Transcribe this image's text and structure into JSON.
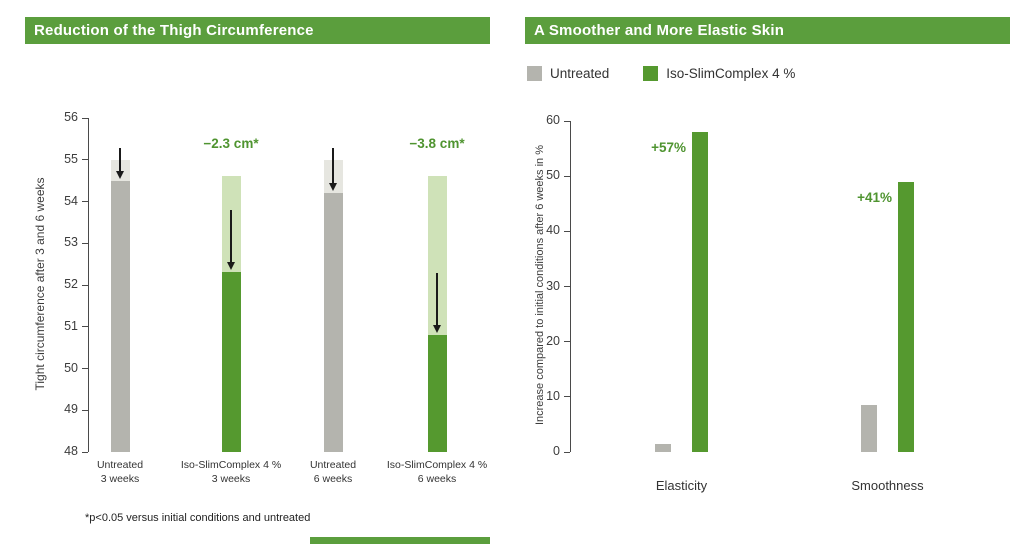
{
  "chart_data": [
    {
      "type": "bar",
      "title": "Reduction of the Thigh Circumference",
      "ylabel": "Tight circumference after 3 and 6 weeks",
      "ylim": [
        48,
        56
      ],
      "ytick_step": 1,
      "footnote": "*p<0.05 versus initial conditions and untreated",
      "bars": [
        {
          "label": "Untreated\n3 weeks",
          "group": "untreated",
          "initial": 55.0,
          "final": 54.5,
          "annotation": null
        },
        {
          "label": "Iso-SlimComplex 4 %\n3 weeks",
          "group": "treated",
          "initial": 54.6,
          "final": 52.3,
          "annotation": "−2.3 cm*"
        },
        {
          "label": "Untreated\n6 weeks",
          "group": "untreated",
          "initial": 55.0,
          "final": 54.2,
          "annotation": null
        },
        {
          "label": "Iso-SlimComplex 4 %\n6 weeks",
          "group": "treated",
          "initial": 54.6,
          "final": 50.8,
          "annotation": "−3.8 cm*"
        }
      ],
      "bar_meaning": "light top segment shows reduction from initial circumference; arrow marks decrease"
    },
    {
      "type": "bar",
      "title": "A Smoother and More Elastic Skin",
      "ylabel": "Increase compared to initial conditions after 6 weeks in %",
      "ylim": [
        0,
        60
      ],
      "ytick_step": 10,
      "legend": [
        "Untreated",
        "Iso-SlimComplex 4 %"
      ],
      "categories": [
        "Elasticity",
        "Smoothness"
      ],
      "series": [
        {
          "name": "Untreated",
          "values": [
            1.5,
            8.5
          ]
        },
        {
          "name": "Iso-SlimComplex 4 %",
          "values": [
            58,
            49
          ]
        }
      ],
      "annotations": [
        "+57%",
        "+41%"
      ]
    }
  ],
  "colors": {
    "header_green": "#5b9e3d",
    "bar_green": "#55992f",
    "bar_light_green": "#cfe2b8",
    "bar_gray": "#b4b4ae",
    "bar_light_gray": "#e6e6e0",
    "annotation_green": "#4f9430",
    "axis_line": "#4a4a4a",
    "arrow_black": "#1a1a1a"
  }
}
